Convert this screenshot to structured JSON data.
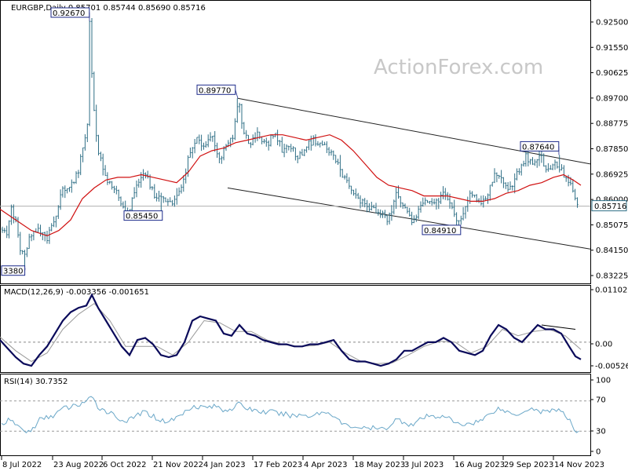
{
  "header": "EURGBP,Daily  0.85701 0.85744 0.85690 0.85716",
  "watermark": "ActionForex.com",
  "colors": {
    "bars": "#2f6f86",
    "ma": "#d01010",
    "macd": "#0a0a5a",
    "signal": "#999999",
    "rsi": "#6aa7c8",
    "frame": "#000000"
  },
  "chart_data": [
    {
      "type": "ohlc",
      "title": "EURGBP,Daily",
      "ohlc_last": {
        "open": 0.85701,
        "high": 0.85744,
        "low": 0.8569,
        "close": 0.85716
      },
      "current_price_label": "0.85716",
      "x_tick_labels": [
        "8 Jul 2022",
        "23 Aug 2022",
        "6 Oct 2022",
        "21 Nov 2022",
        "4 Jan 2023",
        "17 Feb 2023",
        "4 Apr 2023",
        "18 May 2023",
        "3 Jul 2023",
        "16 Aug 2023",
        "29 Sep 2023",
        "14 Nov 2023"
      ],
      "y_tick_labels": [
        "0.92500",
        "0.91550",
        "0.90625",
        "0.89700",
        "0.88775",
        "0.87850",
        "0.86925",
        "0.86000",
        "0.85075",
        "0.84150",
        "0.83225"
      ],
      "ylim": [
        0.829,
        0.9335
      ],
      "price_path": [
        [
          0,
          0.85
        ],
        [
          8,
          0.846
        ],
        [
          14,
          0.856
        ],
        [
          20,
          0.852
        ],
        [
          26,
          0.84
        ],
        [
          32,
          0.838
        ],
        [
          38,
          0.846
        ],
        [
          48,
          0.848
        ],
        [
          60,
          0.845
        ],
        [
          70,
          0.852
        ],
        [
          80,
          0.864
        ],
        [
          90,
          0.865
        ],
        [
          100,
          0.87
        ],
        [
          106,
          0.88
        ],
        [
          112,
          0.89
        ],
        [
          114,
          0.9267
        ],
        [
          118,
          0.9
        ],
        [
          124,
          0.88
        ],
        [
          132,
          0.87
        ],
        [
          140,
          0.865
        ],
        [
          150,
          0.862
        ],
        [
          158,
          0.8555
        ],
        [
          165,
          0.856
        ],
        [
          175,
          0.865
        ],
        [
          185,
          0.87
        ],
        [
          195,
          0.862
        ],
        [
          205,
          0.86
        ],
        [
          215,
          0.858
        ],
        [
          225,
          0.86
        ],
        [
          232,
          0.865
        ],
        [
          240,
          0.875
        ],
        [
          250,
          0.882
        ],
        [
          260,
          0.88
        ],
        [
          270,
          0.884
        ],
        [
          280,
          0.875
        ],
        [
          290,
          0.88
        ],
        [
          298,
          0.884
        ],
        [
          303,
          0.8977
        ],
        [
          310,
          0.886
        ],
        [
          318,
          0.88
        ],
        [
          328,
          0.885
        ],
        [
          340,
          0.88
        ],
        [
          350,
          0.885
        ],
        [
          360,
          0.878
        ],
        [
          370,
          0.88
        ],
        [
          380,
          0.875
        ],
        [
          390,
          0.88
        ],
        [
          400,
          0.882
        ],
        [
          412,
          0.88
        ],
        [
          425,
          0.876
        ],
        [
          435,
          0.87
        ],
        [
          445,
          0.864
        ],
        [
          455,
          0.86
        ],
        [
          465,
          0.858
        ],
        [
          475,
          0.856
        ],
        [
          485,
          0.854
        ],
        [
          495,
          0.852
        ],
        [
          505,
          0.862
        ],
        [
          515,
          0.856
        ],
        [
          525,
          0.852
        ],
        [
          535,
          0.856
        ],
        [
          545,
          0.86
        ],
        [
          555,
          0.858
        ],
        [
          565,
          0.862
        ],
        [
          575,
          0.856
        ],
        [
          585,
          0.851
        ],
        [
          592,
          0.856
        ],
        [
          600,
          0.862
        ],
        [
          610,
          0.858
        ],
        [
          620,
          0.86
        ],
        [
          630,
          0.87
        ],
        [
          640,
          0.866
        ],
        [
          650,
          0.864
        ],
        [
          660,
          0.87
        ],
        [
          670,
          0.876
        ],
        [
          680,
          0.872
        ],
        [
          688,
          0.8764
        ],
        [
          698,
          0.87
        ],
        [
          706,
          0.874
        ],
        [
          712,
          0.872
        ],
        [
          720,
          0.868
        ],
        [
          728,
          0.864
        ],
        [
          735,
          0.8572
        ]
      ],
      "ma_path": [
        [
          0,
          0.856
        ],
        [
          20,
          0.852
        ],
        [
          40,
          0.848
        ],
        [
          60,
          0.846
        ],
        [
          75,
          0.848
        ],
        [
          90,
          0.852
        ],
        [
          105,
          0.86
        ],
        [
          120,
          0.864
        ],
        [
          135,
          0.867
        ],
        [
          150,
          0.868
        ],
        [
          165,
          0.868
        ],
        [
          180,
          0.869
        ],
        [
          195,
          0.868
        ],
        [
          210,
          0.867
        ],
        [
          225,
          0.866
        ],
        [
          240,
          0.87
        ],
        [
          255,
          0.876
        ],
        [
          270,
          0.878
        ],
        [
          285,
          0.879
        ],
        [
          300,
          0.881
        ],
        [
          315,
          0.882
        ],
        [
          330,
          0.883
        ],
        [
          345,
          0.884
        ],
        [
          360,
          0.884
        ],
        [
          375,
          0.883
        ],
        [
          390,
          0.882
        ],
        [
          405,
          0.883
        ],
        [
          420,
          0.884
        ],
        [
          435,
          0.882
        ],
        [
          450,
          0.878
        ],
        [
          465,
          0.873
        ],
        [
          480,
          0.868
        ],
        [
          495,
          0.865
        ],
        [
          510,
          0.864
        ],
        [
          525,
          0.863
        ],
        [
          540,
          0.861
        ],
        [
          555,
          0.861
        ],
        [
          570,
          0.861
        ],
        [
          585,
          0.86
        ],
        [
          600,
          0.859
        ],
        [
          615,
          0.859
        ],
        [
          630,
          0.86
        ],
        [
          645,
          0.862
        ],
        [
          660,
          0.863
        ],
        [
          675,
          0.865
        ],
        [
          690,
          0.866
        ],
        [
          705,
          0.868
        ],
        [
          718,
          0.869
        ],
        [
          730,
          0.867
        ],
        [
          740,
          0.865
        ]
      ],
      "annotations": [
        {
          "text": "0.92670",
          "price": 0.9267,
          "xpos": 65,
          "anchor_x": 114
        },
        {
          "text": "0.89770",
          "price": 0.8977,
          "xpos": 251,
          "anchor_x": 303
        },
        {
          "text": "0.85450",
          "price": 0.8545,
          "xpos": 158,
          "anchor_x": 205
        },
        {
          "text": "0.84910",
          "price": 0.8491,
          "xpos": 538,
          "anchor_x": 585
        },
        {
          "text": "0.87640",
          "price": 0.8764,
          "xpos": 663,
          "anchor_x": 712
        },
        {
          "text": "3380",
          "price": 0.8338,
          "xpos": 2,
          "anchor_x": 32
        }
      ],
      "channel_lines": [
        [
          [
            303,
            0.8977
          ],
          [
            752,
            0.873
          ]
        ],
        [
          [
            290,
            0.864
          ],
          [
            752,
            0.841
          ]
        ]
      ]
    },
    {
      "type": "line",
      "title": "MACD(12,26,9) -0.003356 -0.001651",
      "y_tick_labels": [
        "0.011027",
        "0.00",
        "-0.005267"
      ],
      "ylim": [
        -0.0066,
        0.0124
      ],
      "zero": 0.0,
      "macd": [
        [
          0,
          0.0005
        ],
        [
          10,
          -0.0015
        ],
        [
          20,
          -0.0035
        ],
        [
          30,
          -0.005
        ],
        [
          40,
          -0.0055
        ],
        [
          50,
          -0.003
        ],
        [
          60,
          -0.001
        ],
        [
          70,
          0.002
        ],
        [
          80,
          0.005
        ],
        [
          90,
          0.007
        ],
        [
          100,
          0.008
        ],
        [
          110,
          0.0085
        ],
        [
          117,
          0.011
        ],
        [
          125,
          0.008
        ],
        [
          135,
          0.005
        ],
        [
          145,
          0.002
        ],
        [
          155,
          -0.001
        ],
        [
          165,
          -0.003
        ],
        [
          175,
          0.0005
        ],
        [
          185,
          0.001
        ],
        [
          195,
          -0.0005
        ],
        [
          205,
          -0.003
        ],
        [
          215,
          -0.0035
        ],
        [
          225,
          -0.003
        ],
        [
          235,
          0.0
        ],
        [
          245,
          0.005
        ],
        [
          255,
          0.006
        ],
        [
          265,
          0.0055
        ],
        [
          275,
          0.005
        ],
        [
          285,
          0.002
        ],
        [
          295,
          0.0015
        ],
        [
          305,
          0.004
        ],
        [
          315,
          0.002
        ],
        [
          325,
          0.0015
        ],
        [
          335,
          0.0005
        ],
        [
          345,
          0.0
        ],
        [
          355,
          -0.0005
        ],
        [
          365,
          -0.0005
        ],
        [
          375,
          -0.001
        ],
        [
          385,
          -0.001
        ],
        [
          395,
          -0.0005
        ],
        [
          405,
          -0.0005
        ],
        [
          415,
          0.0
        ],
        [
          425,
          0.0005
        ],
        [
          435,
          -0.002
        ],
        [
          445,
          -0.004
        ],
        [
          455,
          -0.0045
        ],
        [
          465,
          -0.0045
        ],
        [
          475,
          -0.005
        ],
        [
          485,
          -0.0055
        ],
        [
          495,
          -0.005
        ],
        [
          505,
          -0.004
        ],
        [
          515,
          -0.002
        ],
        [
          525,
          -0.002
        ],
        [
          535,
          -0.001
        ],
        [
          545,
          0.0
        ],
        [
          555,
          0.0
        ],
        [
          565,
          0.001
        ],
        [
          575,
          0.0
        ],
        [
          585,
          -0.002
        ],
        [
          595,
          -0.0025
        ],
        [
          605,
          -0.003
        ],
        [
          615,
          -0.002
        ],
        [
          625,
          0.0015
        ],
        [
          635,
          0.004
        ],
        [
          645,
          0.003
        ],
        [
          655,
          0.001
        ],
        [
          665,
          0.0
        ],
        [
          675,
          0.002
        ],
        [
          685,
          0.004
        ],
        [
          695,
          0.003
        ],
        [
          705,
          0.003
        ],
        [
          715,
          0.002
        ],
        [
          725,
          -0.001
        ],
        [
          733,
          -0.0033
        ],
        [
          740,
          -0.004
        ]
      ],
      "signal": [
        [
          0,
          0.0012
        ],
        [
          20,
          -0.002
        ],
        [
          40,
          -0.0045
        ],
        [
          60,
          -0.0025
        ],
        [
          80,
          0.003
        ],
        [
          100,
          0.0065
        ],
        [
          120,
          0.009
        ],
        [
          140,
          0.005
        ],
        [
          160,
          -0.001
        ],
        [
          180,
          -0.001
        ],
        [
          200,
          -0.001
        ],
        [
          220,
          -0.003
        ],
        [
          240,
          0.0
        ],
        [
          260,
          0.005
        ],
        [
          280,
          0.0045
        ],
        [
          300,
          0.0025
        ],
        [
          320,
          0.0025
        ],
        [
          340,
          0.0005
        ],
        [
          360,
          -0.0005
        ],
        [
          380,
          -0.001
        ],
        [
          400,
          -0.0008
        ],
        [
          420,
          0.0
        ],
        [
          440,
          -0.0025
        ],
        [
          460,
          -0.0045
        ],
        [
          480,
          -0.005
        ],
        [
          500,
          -0.0048
        ],
        [
          520,
          -0.003
        ],
        [
          540,
          -0.001
        ],
        [
          560,
          0.0002
        ],
        [
          580,
          0.0
        ],
        [
          600,
          -0.0025
        ],
        [
          620,
          -0.001
        ],
        [
          640,
          0.003
        ],
        [
          660,
          0.0015
        ],
        [
          680,
          0.0025
        ],
        [
          700,
          0.003
        ],
        [
          720,
          0.0015
        ],
        [
          740,
          -0.0017
        ]
      ],
      "trend_line": [
        [
          690,
          0.004
        ],
        [
          733,
          0.003
        ]
      ]
    },
    {
      "type": "line",
      "title": "RSI(14) 30.7352",
      "y_tick_labels": [
        "100",
        "70",
        "30",
        "0"
      ],
      "ylim": [
        0,
        100
      ],
      "levels": [
        70,
        30
      ],
      "rsi": [
        [
          0,
          38
        ],
        [
          10,
          44
        ],
        [
          20,
          40
        ],
        [
          30,
          30
        ],
        [
          40,
          30
        ],
        [
          50,
          45
        ],
        [
          60,
          48
        ],
        [
          70,
          52
        ],
        [
          80,
          60
        ],
        [
          90,
          62
        ],
        [
          100,
          65
        ],
        [
          110,
          70
        ],
        [
          117,
          74
        ],
        [
          125,
          62
        ],
        [
          135,
          57
        ],
        [
          145,
          52
        ],
        [
          155,
          44
        ],
        [
          165,
          44
        ],
        [
          175,
          52
        ],
        [
          185,
          55
        ],
        [
          195,
          50
        ],
        [
          205,
          44
        ],
        [
          215,
          43
        ],
        [
          225,
          48
        ],
        [
          235,
          55
        ],
        [
          245,
          64
        ],
        [
          255,
          62
        ],
        [
          265,
          62
        ],
        [
          275,
          63
        ],
        [
          285,
          58
        ],
        [
          295,
          60
        ],
        [
          305,
          66
        ],
        [
          315,
          60
        ],
        [
          325,
          58
        ],
        [
          335,
          55
        ],
        [
          345,
          56
        ],
        [
          355,
          53
        ],
        [
          365,
          52
        ],
        [
          375,
          50
        ],
        [
          385,
          52
        ],
        [
          395,
          50
        ],
        [
          405,
          54
        ],
        [
          415,
          55
        ],
        [
          425,
          52
        ],
        [
          435,
          40
        ],
        [
          445,
          36
        ],
        [
          455,
          36
        ],
        [
          465,
          33
        ],
        [
          475,
          34
        ],
        [
          485,
          32
        ],
        [
          495,
          36
        ],
        [
          505,
          46
        ],
        [
          515,
          42
        ],
        [
          525,
          38
        ],
        [
          535,
          45
        ],
        [
          545,
          50
        ],
        [
          555,
          48
        ],
        [
          565,
          52
        ],
        [
          575,
          44
        ],
        [
          585,
          38
        ],
        [
          595,
          40
        ],
        [
          605,
          42
        ],
        [
          615,
          45
        ],
        [
          625,
          55
        ],
        [
          635,
          60
        ],
        [
          645,
          56
        ],
        [
          655,
          52
        ],
        [
          665,
          55
        ],
        [
          675,
          61
        ],
        [
          685,
          57
        ],
        [
          695,
          55
        ],
        [
          705,
          60
        ],
        [
          715,
          56
        ],
        [
          725,
          44
        ],
        [
          733,
          30
        ],
        [
          740,
          32
        ]
      ]
    }
  ]
}
